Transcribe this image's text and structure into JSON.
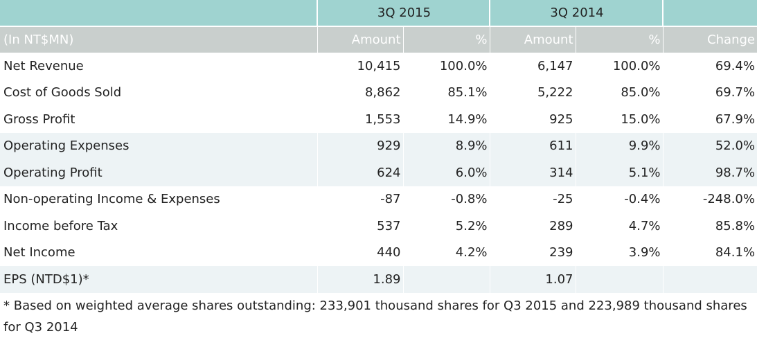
{
  "table": {
    "periods": [
      "3Q 2015",
      "3Q 2014"
    ],
    "unit_label": "(In NT$MN)",
    "columns": [
      "Amount",
      "%",
      "Amount",
      "%",
      "Change"
    ],
    "rows": [
      {
        "label": "Net Revenue",
        "cells": [
          "10,415",
          "100.0%",
          "6,147",
          "100.0%",
          "69.4%"
        ]
      },
      {
        "label": "Cost of Goods Sold",
        "cells": [
          "8,862",
          "85.1%",
          "5,222",
          "85.0%",
          "69.7%"
        ]
      },
      {
        "label": "Gross Profit",
        "cells": [
          "1,553",
          "14.9%",
          "925",
          "15.0%",
          "67.9%"
        ]
      },
      {
        "label": "Operating Expenses",
        "cells": [
          "929",
          "8.9%",
          "611",
          "9.9%",
          "52.0%"
        ]
      },
      {
        "label": "Operating Profit",
        "cells": [
          "624",
          "6.0%",
          "314",
          "5.1%",
          "98.7%"
        ]
      },
      {
        "label": "Non-operating Income & Expenses",
        "cells": [
          "-87",
          "-0.8%",
          "-25",
          "-0.4%",
          "-248.0%"
        ]
      },
      {
        "label": "Income before Tax",
        "cells": [
          "537",
          "5.2%",
          "289",
          "4.7%",
          "85.8%"
        ]
      },
      {
        "label": "Net Income",
        "cells": [
          "440",
          "4.2%",
          "239",
          "3.9%",
          "84.1%"
        ]
      },
      {
        "label": "EPS (NTD$1)*",
        "cells": [
          "1.89",
          "",
          "1.07",
          "",
          ""
        ]
      }
    ]
  },
  "footnote": "* Based on weighted average shares outstanding: 233,901 thousand shares for Q3 2015 and 223,989 thousand shares for Q3 2014",
  "colors": {
    "period_header_bg": "#9fd3d0",
    "column_header_bg": "#c9cfcd",
    "shaded_row_bg": "#edf3f5"
  }
}
